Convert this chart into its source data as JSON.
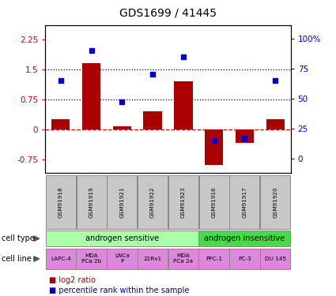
{
  "title": "GDS1699 / 41445",
  "samples": [
    "GSM91918",
    "GSM91919",
    "GSM91921",
    "GSM91922",
    "GSM91923",
    "GSM91916",
    "GSM91917",
    "GSM91920"
  ],
  "log2_ratio": [
    0.25,
    1.65,
    0.07,
    0.45,
    1.2,
    -0.9,
    -0.35,
    0.25
  ],
  "percentile_rank": [
    65,
    90,
    47,
    70,
    85,
    15,
    17,
    65
  ],
  "cell_types": [
    {
      "label": "androgen sensitive",
      "start": 0,
      "end": 5,
      "color": "#aaffaa"
    },
    {
      "label": "androgen insensitive",
      "start": 5,
      "end": 8,
      "color": "#44dd44"
    }
  ],
  "cell_lines": [
    {
      "label": "LAPC-4",
      "start": 0,
      "end": 1
    },
    {
      "label": "MDA\nPCa 2b",
      "start": 1,
      "end": 2
    },
    {
      "label": "LNCa\nP",
      "start": 2,
      "end": 3
    },
    {
      "label": "22Rv1",
      "start": 3,
      "end": 4
    },
    {
      "label": "MDA\nPCa 2a",
      "start": 4,
      "end": 5
    },
    {
      "label": "PPC-1",
      "start": 5,
      "end": 6
    },
    {
      "label": "PC-3",
      "start": 6,
      "end": 7
    },
    {
      "label": "DU 145",
      "start": 7,
      "end": 8
    }
  ],
  "cell_line_color": "#dd88dd",
  "bar_color": "#aa0000",
  "dot_color": "#0000cc",
  "ylim_left": [
    -1.1,
    2.6
  ],
  "ylim_right": [
    -12.2,
    111.1
  ],
  "yticks_left": [
    -0.75,
    0,
    0.75,
    1.5,
    2.25
  ],
  "yticks_left_labels": [
    "-0.75",
    "0",
    "0.75",
    "1.5",
    "2.25"
  ],
  "yticks_right": [
    0,
    25,
    50,
    75,
    100
  ],
  "yticks_right_labels": [
    "0",
    "25",
    "50",
    "75",
    "100%"
  ],
  "hlines": [
    0.75,
    1.5
  ],
  "zero_line": 0,
  "background_color": "#ffffff",
  "sample_bg_color": "#c8c8c8",
  "left_label_color": "#cc0000",
  "right_label_color": "#0000cc",
  "n_samples": 8,
  "bar_width": 0.6
}
